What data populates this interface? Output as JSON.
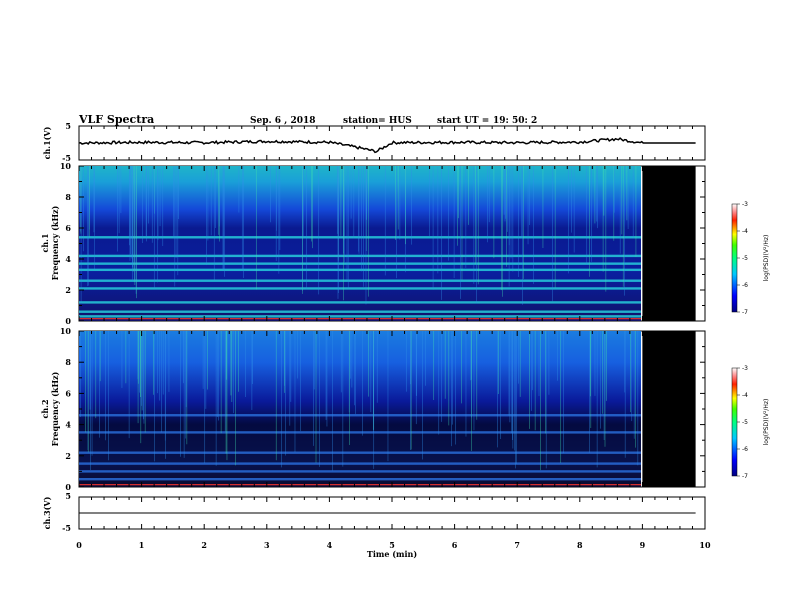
{
  "header": {
    "title": "VLF Spectra",
    "date": "Sep. 6 , 2018",
    "station": "station= HUS",
    "start_label": "start UT = ",
    "start_time": "19: 50: 2"
  },
  "colors": {
    "background": "#ffffff",
    "axis": "#000000",
    "spectrogram_base": "#0a1a8c",
    "no_data": "#000000"
  },
  "chart_data": [
    {
      "type": "line",
      "panel": "ch1-waveform",
      "ylabel": "ch.1(V)",
      "ylim": [
        -5,
        5
      ],
      "yticks": [
        "5",
        "-5"
      ],
      "x": [
        0,
        1,
        2,
        3,
        4,
        4.5,
        4.75,
        5,
        6,
        7,
        8,
        8.6,
        9,
        9.85
      ],
      "y": [
        0,
        0.2,
        0.1,
        0.5,
        0.2,
        -1.5,
        -2.5,
        0.1,
        0.2,
        0.1,
        0.3,
        1.2,
        0,
        0
      ]
    },
    {
      "type": "heatmap",
      "panel": "ch1-spectrogram",
      "ylabel_channel": "ch.1",
      "ylabel": "Frequency (kHz)",
      "ylim": [
        0,
        10
      ],
      "yticks": [
        "0",
        "2",
        "4",
        "6",
        "8",
        "10"
      ],
      "xlim": [
        0,
        10
      ],
      "data_end_min": 9.0,
      "record_end_min": 9.85,
      "bands_khz": [
        0.3,
        0.6,
        1.2,
        2.1,
        2.6,
        3.3,
        3.7,
        4.2,
        5.4
      ],
      "colorbar": {
        "label": "log(PSD)(V²/Hz)",
        "ticks": [
          "-3",
          "-4",
          "-5",
          "-6",
          "-7"
        ],
        "range": [
          -7,
          -3
        ]
      }
    },
    {
      "type": "heatmap",
      "panel": "ch2-spectrogram",
      "ylabel_channel": "ch.2",
      "ylabel": "Frequency (kHz)",
      "ylim": [
        0,
        10
      ],
      "yticks": [
        "0",
        "2",
        "4",
        "6",
        "8",
        "10"
      ],
      "xlim": [
        0,
        10
      ],
      "data_end_min": 9.0,
      "record_end_min": 9.85,
      "bands_khz": [
        0.5,
        1.0,
        1.5,
        2.2,
        3.5,
        4.6
      ],
      "colorbar": {
        "label": "log(PSD)(V²/Hz)",
        "ticks": [
          "-3",
          "-4",
          "-5",
          "-6",
          "-7"
        ],
        "range": [
          -7,
          -3
        ]
      }
    },
    {
      "type": "line",
      "panel": "ch3-waveform",
      "ylabel": "ch.3(V)",
      "ylim": [
        -5,
        5
      ],
      "yticks": [
        "5",
        "-5"
      ],
      "x": [
        0,
        9.85
      ],
      "y": [
        0,
        0
      ]
    }
  ],
  "x_axis": {
    "label": "Time (min)",
    "ticks": [
      "0",
      "1",
      "2",
      "3",
      "4",
      "5",
      "6",
      "7",
      "8",
      "9",
      "10"
    ]
  }
}
